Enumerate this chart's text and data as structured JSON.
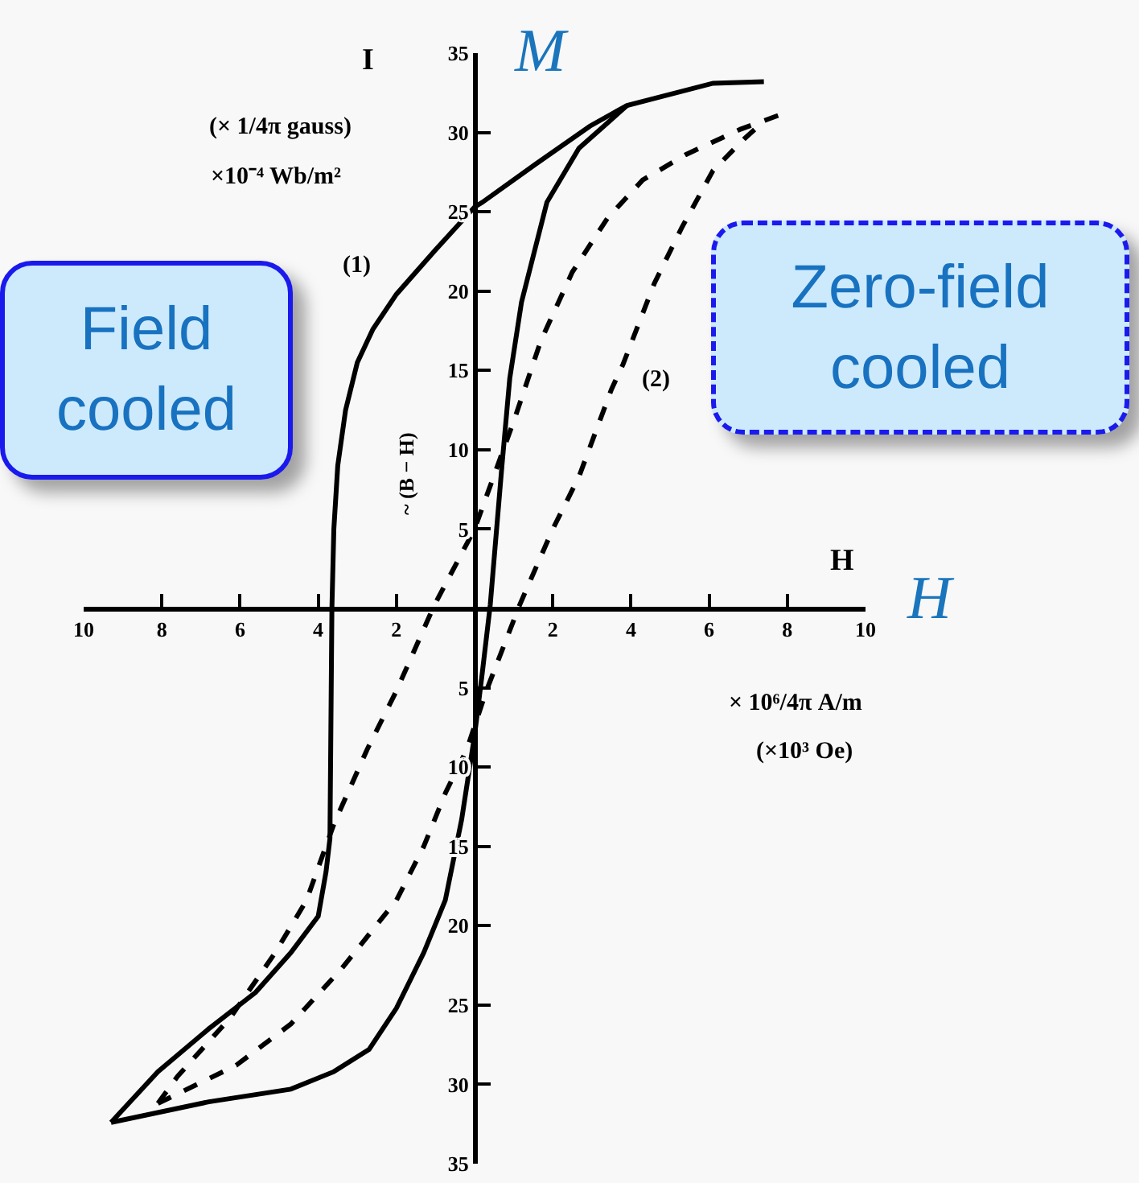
{
  "chart_data": {
    "type": "line",
    "xlabel": "H",
    "ylabel": "I",
    "xlim": [
      -10,
      10
    ],
    "ylim": [
      -35,
      35
    ],
    "xticks": [
      {
        "value": -10,
        "label": "10"
      },
      {
        "value": -8,
        "label": "8"
      },
      {
        "value": -6,
        "label": "6"
      },
      {
        "value": -4,
        "label": "4"
      },
      {
        "value": -2,
        "label": "2"
      },
      2,
      4,
      6,
      8,
      10
    ],
    "yticks": [
      {
        "value": -35,
        "label": "35"
      },
      {
        "value": -30,
        "label": "30"
      },
      {
        "value": -25,
        "label": "25"
      },
      {
        "value": -20,
        "label": "20"
      },
      {
        "value": -15,
        "label": "15"
      },
      {
        "value": -10,
        "label": "10"
      },
      {
        "value": -5,
        "label": "5"
      },
      5,
      10,
      15,
      20,
      25,
      30,
      35
    ],
    "series": [
      {
        "color": "#000000",
        "line_style": "solid",
        "x": [
          -9.3,
          -8.1,
          -6.8,
          -5.6,
          -4.7,
          -4.0,
          -3.8,
          -3.7,
          -3.65,
          -3.6,
          -3.5,
          -3.3,
          -3,
          -2.6,
          -2,
          -1,
          0,
          0.2,
          1.56,
          2.95,
          3.9,
          6.1,
          7.4
        ],
        "values": [
          -32.4,
          -29.2,
          -26.5,
          -24.2,
          -21.7,
          -19.4,
          -16.6,
          -14.5,
          0,
          5,
          9,
          12.5,
          15.5,
          17.6,
          19.8,
          22.6,
          25.3,
          25.6,
          28,
          30.4,
          31.7,
          33.1,
          33.2
        ]
      },
      {
        "color": "#000000",
        "line_style": "solid",
        "x": [
          -9.3,
          -6.8,
          -4.7,
          -3.6,
          -2.7,
          -2,
          -1.3,
          -0.75,
          -0.33,
          0,
          0.2,
          0.4,
          0.7,
          0.9,
          1.2,
          1.85,
          2.67,
          3.9
        ],
        "values": [
          -32.4,
          -31.1,
          -30.3,
          -29.2,
          -27.8,
          -25.2,
          -21.7,
          -18.4,
          -13.3,
          -8,
          -4,
          0.2,
          9,
          14.5,
          19.3,
          25.6,
          29,
          31.7
        ]
      },
      {
        "color": "#000000",
        "line_style": "dashed",
        "x": [
          -8.1,
          -7.6,
          -6.25,
          -5.1,
          -4.3,
          -3.6,
          -2.75,
          -2,
          -1.03,
          0,
          1.03,
          1.7,
          2.5,
          3.4,
          4.3,
          5.4,
          6.8,
          7.8
        ],
        "values": [
          -31.2,
          -29.5,
          -25.8,
          -21.7,
          -18.4,
          -13.6,
          -8.9,
          -5.2,
          0.2,
          5,
          12,
          16.9,
          21.2,
          24.6,
          27,
          28.6,
          30.2,
          31.1
        ]
      },
      {
        "color": "#000000",
        "line_style": "dashed",
        "x": [
          -8.1,
          -6.1,
          -4.7,
          -3.4,
          -2,
          -1.3,
          -0.74,
          -0.2,
          0.3,
          1.15,
          2,
          2.67,
          3.5,
          3.8,
          4.6,
          5.3,
          6.1,
          6.9,
          7.4
        ],
        "values": [
          -31.2,
          -28.8,
          -26.2,
          -22.7,
          -18.4,
          -15,
          -11.6,
          -8.9,
          -5.2,
          0.2,
          5,
          8.3,
          13.8,
          15.4,
          20.5,
          24,
          27.6,
          29.6,
          30.7
        ]
      }
    ],
    "annotations": [
      "(× 1/4π gauss)",
      "×10⁻⁴ Wb/m²",
      "~ (B − H)",
      "× 10⁶/4π A/m",
      "(×10³ Oe)",
      "M",
      "H",
      "Field cooled",
      "Zero-field cooled",
      "(1)",
      "(2)"
    ]
  }
}
